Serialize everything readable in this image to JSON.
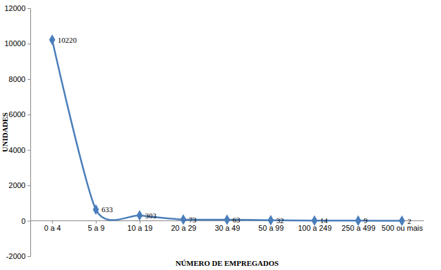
{
  "chart_data": {
    "type": "line",
    "x_label": "NÚMERO DE EMPREGADOS",
    "y_label": "UNIDADES",
    "categories": [
      "0 a 4",
      "5 a 9",
      "10 a 19",
      "20 a 29",
      "30 a 49",
      "50 a 99",
      "100 a 249",
      "250 a 499",
      "500 ou mais"
    ],
    "values": [
      10220,
      633,
      303,
      73,
      63,
      32,
      14,
      9,
      2
    ],
    "color": "#4a7ebb",
    "marker": "diamond",
    "data_labels": true,
    "grid": false,
    "ylim": [
      -2000,
      12000
    ],
    "yticks": [
      -2000,
      0,
      2000,
      4000,
      6000,
      8000,
      10000,
      12000
    ]
  }
}
